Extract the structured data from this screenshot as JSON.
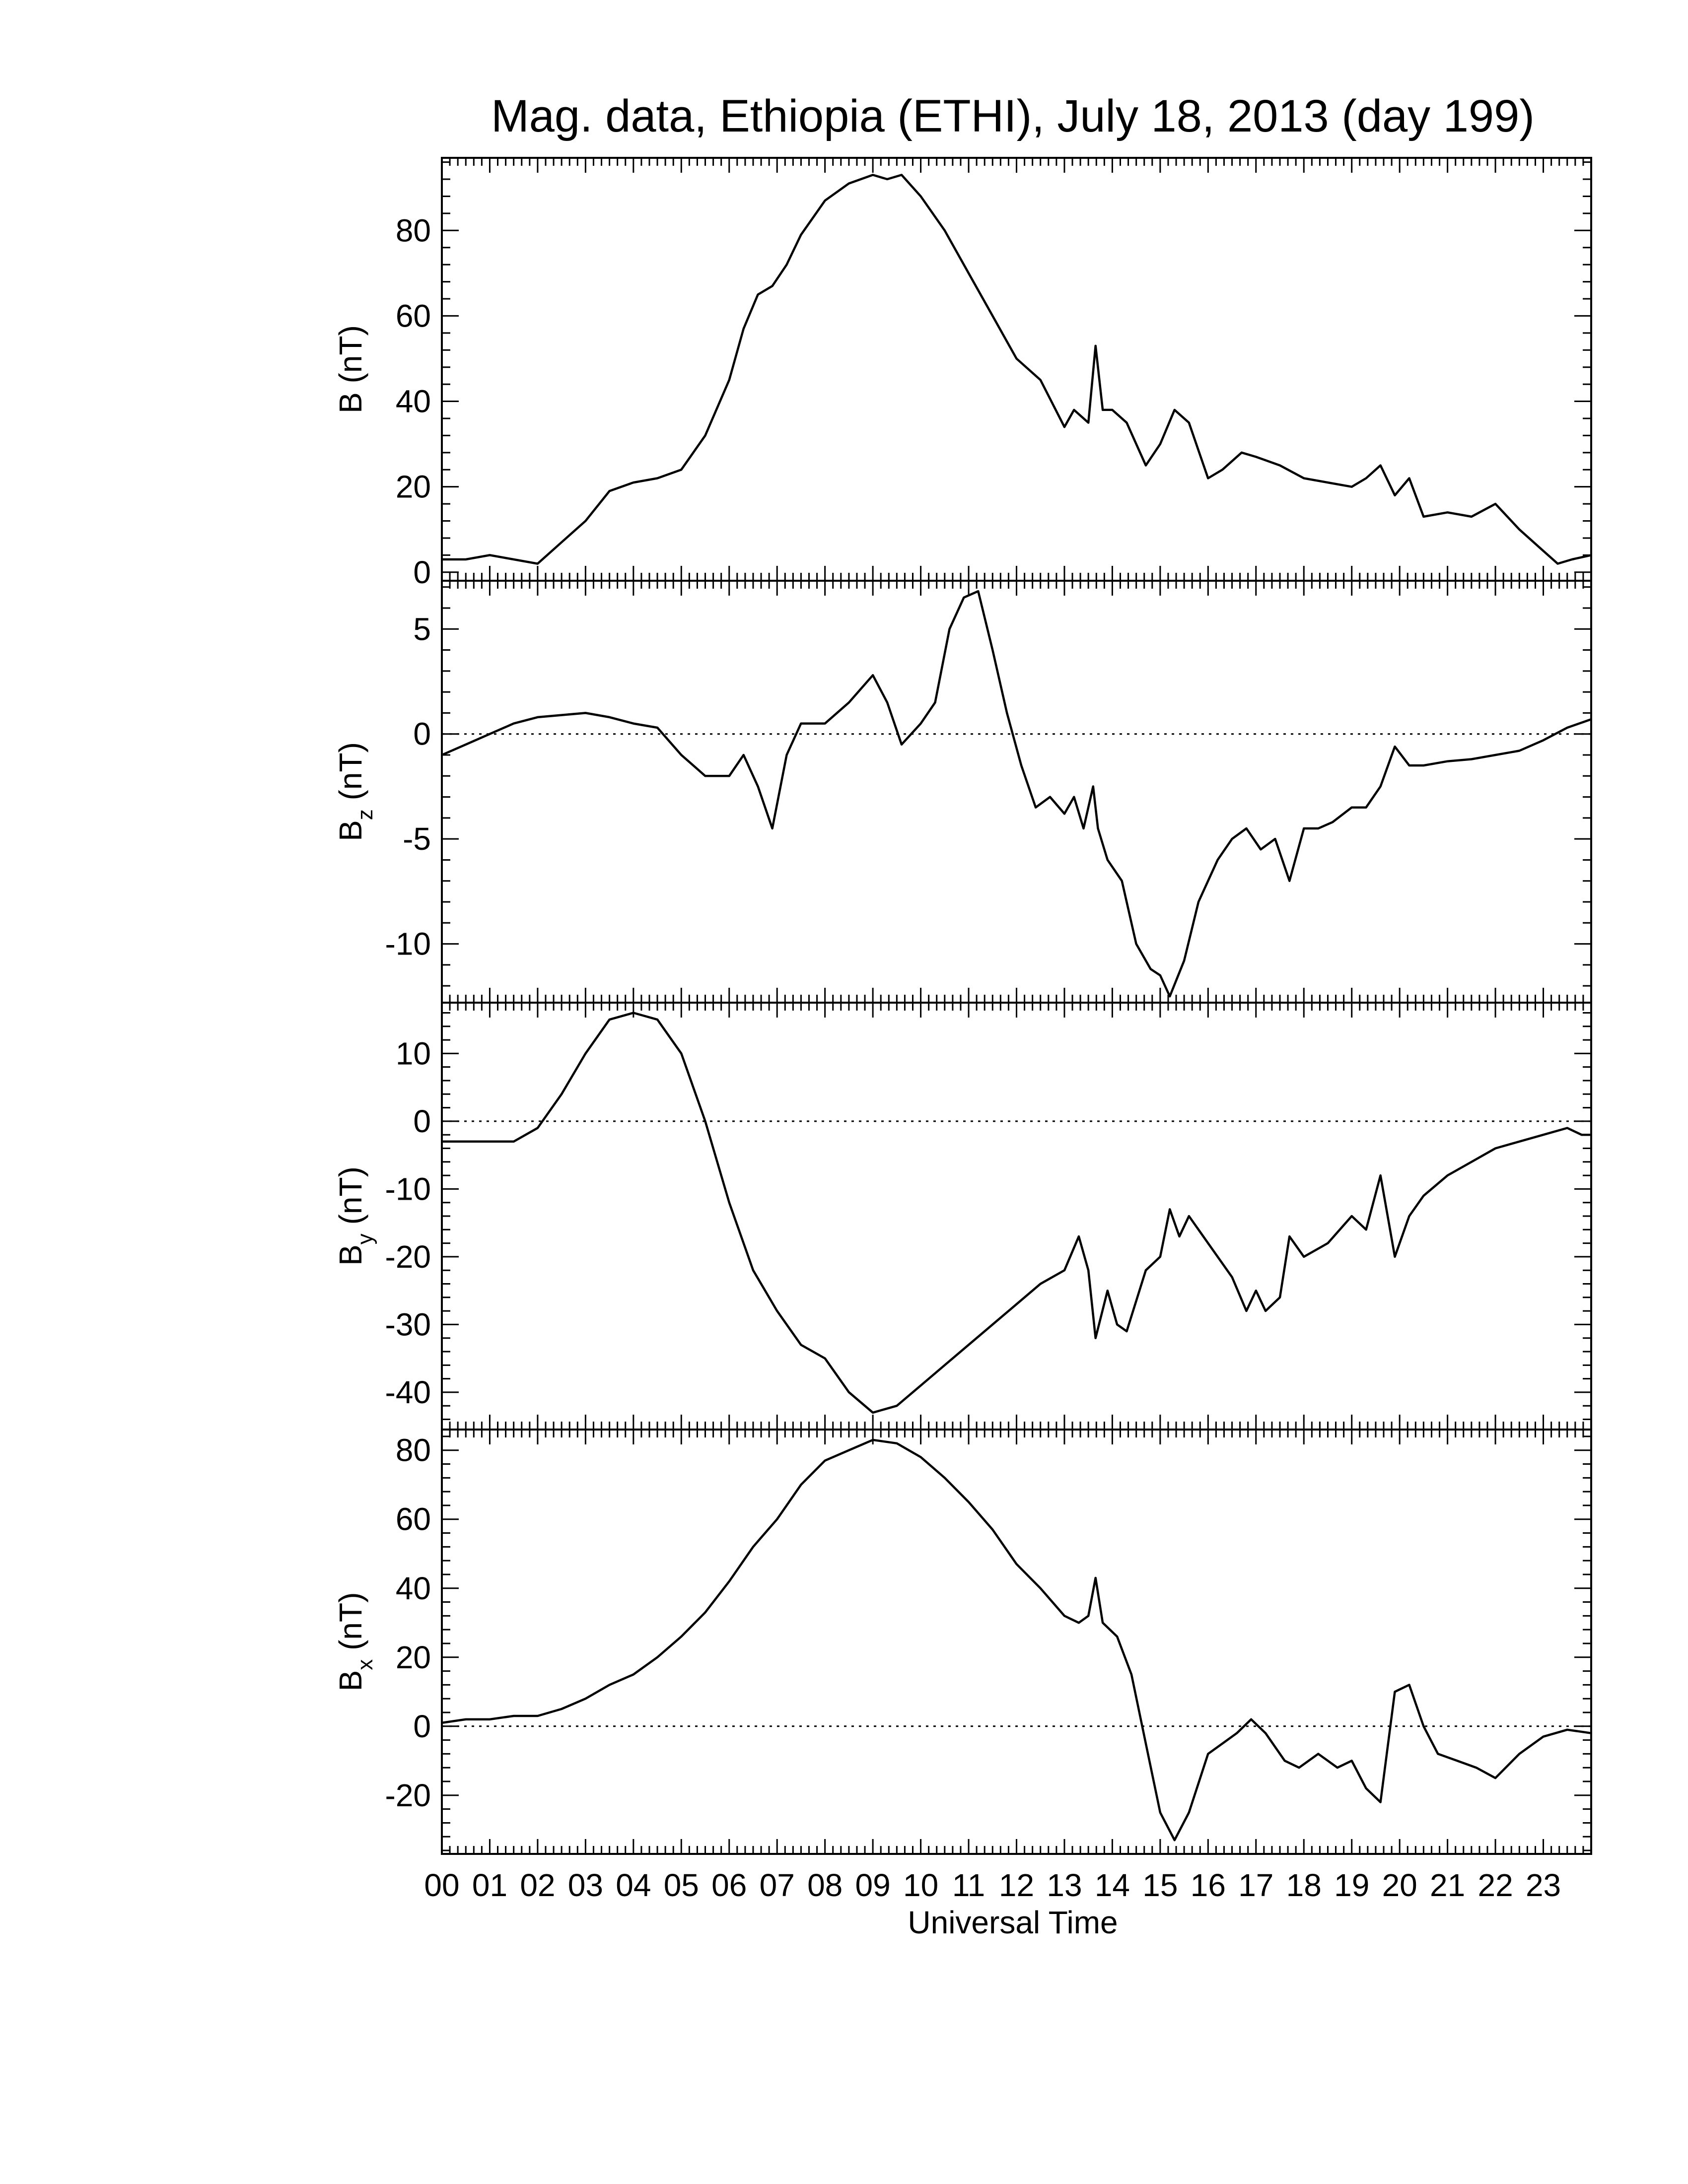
{
  "chart_data": {
    "type": "line",
    "title": "Mag. data, Ethiopia (ETHI), July 18, 2013 (day 199)",
    "xlabel": "Universal Time",
    "x_range": [
      0,
      24
    ],
    "x_tick_labels": [
      "00",
      "01",
      "02",
      "03",
      "04",
      "05",
      "06",
      "07",
      "08",
      "09",
      "10",
      "11",
      "12",
      "13",
      "14",
      "15",
      "16",
      "17",
      "18",
      "19",
      "20",
      "21",
      "22",
      "23"
    ],
    "panels": [
      {
        "name": "B",
        "ylabel_base": "B",
        "ylabel_sub": "",
        "ylabel_unit": "(nT)",
        "ylim": [
          -2,
          97
        ],
        "yticks": [
          0,
          20,
          40,
          60,
          80
        ],
        "zero_line": false,
        "x": [
          0,
          0.5,
          1,
          1.5,
          2,
          2.5,
          3,
          3.5,
          4,
          4.5,
          5,
          5.5,
          6,
          6.3,
          6.6,
          6.9,
          7.2,
          7.5,
          8,
          8.5,
          9,
          9.3,
          9.6,
          10,
          10.5,
          11,
          11.5,
          12,
          12.5,
          13,
          13.2,
          13.5,
          13.65,
          13.8,
          14,
          14.3,
          14.7,
          15,
          15.3,
          15.6,
          16,
          16.3,
          16.7,
          17,
          17.5,
          18,
          18.5,
          19,
          19.3,
          19.6,
          19.9,
          20.2,
          20.5,
          21,
          21.5,
          22,
          22.5,
          23,
          23.3,
          23.6,
          24
        ],
        "y": [
          3,
          3,
          4,
          3,
          2,
          7,
          12,
          19,
          21,
          22,
          24,
          32,
          45,
          57,
          65,
          67,
          72,
          79,
          87,
          91,
          93,
          92,
          93,
          88,
          80,
          70,
          60,
          50,
          45,
          34,
          38,
          35,
          53,
          38,
          38,
          35,
          25,
          30,
          38,
          35,
          22,
          24,
          28,
          27,
          25,
          22,
          21,
          20,
          22,
          25,
          18,
          22,
          13,
          14,
          13,
          16,
          10,
          5,
          2,
          3,
          4
        ]
      },
      {
        "name": "Bz",
        "ylabel_base": "B",
        "ylabel_sub": "z",
        "ylabel_unit": "(nT)",
        "ylim": [
          -12.8,
          7.3
        ],
        "yticks": [
          -10,
          -5,
          0,
          5
        ],
        "yticklabels": [
          "-10",
          "-5",
          "0",
          "5"
        ],
        "zero_line": true,
        "x": [
          0,
          0.5,
          1,
          1.5,
          2,
          2.5,
          3,
          3.5,
          4,
          4.5,
          5,
          5.5,
          6,
          6.3,
          6.6,
          6.9,
          7.2,
          7.5,
          8,
          8.5,
          9,
          9.3,
          9.6,
          10,
          10.3,
          10.6,
          10.9,
          11.2,
          11.5,
          11.8,
          12.1,
          12.4,
          12.7,
          13,
          13.2,
          13.4,
          13.6,
          13.7,
          13.9,
          14.2,
          14.5,
          14.8,
          15,
          15.2,
          15.5,
          15.8,
          16.2,
          16.5,
          16.8,
          17.1,
          17.4,
          17.7,
          18,
          18.3,
          18.6,
          19,
          19.3,
          19.6,
          19.9,
          20.2,
          20.5,
          21,
          21.5,
          22,
          22.5,
          23,
          23.5,
          24
        ],
        "y": [
          -1,
          -0.5,
          0,
          0.5,
          0.8,
          0.9,
          1,
          0.8,
          0.5,
          0.3,
          -1,
          -2,
          -2,
          -1,
          -2.5,
          -4.5,
          -1,
          0.5,
          0.5,
          1.5,
          2.8,
          1.5,
          -0.5,
          0.5,
          1.5,
          5,
          6.5,
          6.8,
          4,
          1,
          -1.5,
          -3.5,
          -3,
          -3.8,
          -3,
          -4.5,
          -2.5,
          -4.5,
          -6,
          -7,
          -10,
          -11.2,
          -11.5,
          -12.5,
          -10.8,
          -8,
          -6,
          -5,
          -4.5,
          -5.5,
          -5,
          -7,
          -4.5,
          -4.5,
          -4.2,
          -3.5,
          -3.5,
          -2.5,
          -0.6,
          -1.5,
          -1.5,
          -1.3,
          -1.2,
          -1,
          -0.8,
          -0.3,
          0.3,
          0.7
        ]
      },
      {
        "name": "By",
        "ylabel_base": "B",
        "ylabel_sub": "y",
        "ylabel_unit": "(nT)",
        "ylim": [
          -45.5,
          17.5
        ],
        "yticks": [
          -40,
          -30,
          -20,
          -10,
          0,
          10
        ],
        "zero_line": true,
        "x": [
          0,
          0.5,
          1,
          1.5,
          2,
          2.5,
          3,
          3.5,
          4,
          4.5,
          5,
          5.5,
          6,
          6.5,
          7,
          7.5,
          8,
          8.5,
          9,
          9.5,
          10,
          10.5,
          11,
          11.5,
          12,
          12.5,
          13,
          13.3,
          13.5,
          13.65,
          13.9,
          14.1,
          14.3,
          14.7,
          15,
          15.2,
          15.4,
          15.6,
          16,
          16.5,
          16.8,
          17,
          17.2,
          17.5,
          17.7,
          18,
          18.5,
          19,
          19.3,
          19.6,
          19.9,
          20.2,
          20.5,
          21,
          21.5,
          22,
          22.5,
          23,
          23.5,
          23.8,
          24
        ],
        "y": [
          -3,
          -3,
          -3,
          -3,
          -1,
          4,
          10,
          15,
          16,
          15,
          10,
          0,
          -12,
          -22,
          -28,
          -33,
          -35,
          -40,
          -43,
          -42,
          -39,
          -36,
          -33,
          -30,
          -27,
          -24,
          -22,
          -17,
          -22,
          -32,
          -25,
          -30,
          -31,
          -22,
          -20,
          -13,
          -17,
          -14,
          -18,
          -23,
          -28,
          -25,
          -28,
          -26,
          -17,
          -20,
          -18,
          -14,
          -16,
          -8,
          -20,
          -14,
          -11,
          -8,
          -6,
          -4,
          -3,
          -2,
          -1,
          -2,
          -2
        ]
      },
      {
        "name": "Bx",
        "ylabel_base": "B",
        "ylabel_sub": "x",
        "ylabel_unit": "(nT)",
        "ylim": [
          -37,
          86
        ],
        "yticks": [
          -20,
          0,
          20,
          40,
          60,
          80
        ],
        "zero_line": true,
        "x": [
          0,
          0.5,
          1,
          1.5,
          2,
          2.5,
          3,
          3.5,
          4,
          4.5,
          5,
          5.5,
          6,
          6.5,
          7,
          7.5,
          8,
          8.5,
          9,
          9.5,
          10,
          10.5,
          11,
          11.5,
          12,
          12.5,
          13,
          13.3,
          13.5,
          13.65,
          13.8,
          14.1,
          14.4,
          14.7,
          15,
          15.3,
          15.6,
          16,
          16.3,
          16.6,
          16.9,
          17.2,
          17.6,
          17.9,
          18.3,
          18.7,
          19,
          19.3,
          19.6,
          19.9,
          20.2,
          20.5,
          20.8,
          21.2,
          21.6,
          22,
          22.5,
          23,
          23.5,
          24
        ],
        "y": [
          1,
          2,
          2,
          3,
          3,
          5,
          8,
          12,
          15,
          20,
          26,
          33,
          42,
          52,
          60,
          70,
          77,
          80,
          83,
          82,
          78,
          72,
          65,
          57,
          47,
          40,
          32,
          30,
          32,
          43,
          30,
          26,
          15,
          -5,
          -25,
          -33,
          -25,
          -8,
          -5,
          -2,
          2,
          -2,
          -10,
          -12,
          -8,
          -12,
          -10,
          -18,
          -22,
          10,
          12,
          0,
          -8,
          -10,
          -12,
          -15,
          -8,
          -3,
          -1,
          -2
        ]
      }
    ]
  }
}
